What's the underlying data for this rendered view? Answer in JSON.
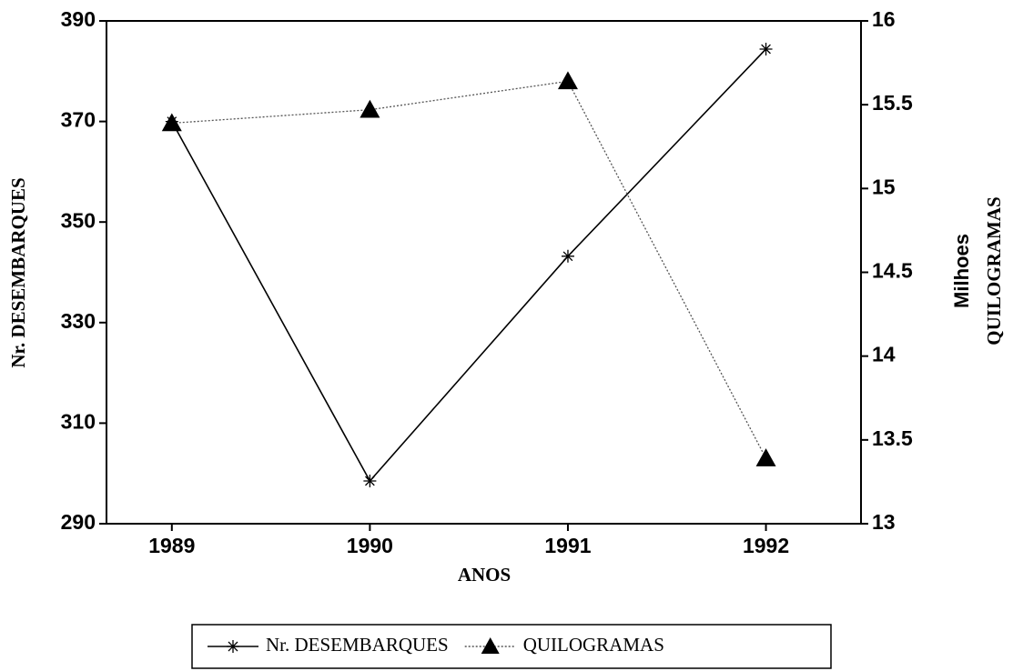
{
  "chart_data": {
    "type": "line",
    "x": [
      1989,
      1990,
      1991,
      1992
    ],
    "xlim": [
      1988.67,
      1992.48
    ],
    "xticks": [
      1989,
      1990,
      1991,
      1992
    ],
    "ylim": [
      290,
      390
    ],
    "yticks": [
      290,
      310,
      330,
      350,
      370,
      390
    ],
    "y2lim": [
      13,
      16
    ],
    "y2ticks": [
      13,
      13.5,
      14,
      14.5,
      15,
      15.5,
      16
    ],
    "x_label": "ANOS",
    "y_label": "Nr. DESEMBARQUES",
    "y2_label": "QUILOGRAMAS",
    "y2_unit_label": "Milhoes",
    "legend": "bottom",
    "series": [
      {
        "name": "Nr. DESEMBARQUES",
        "color": "#000000",
        "marker": "asterisk",
        "line_style": "solid",
        "values": [
          370,
          298.5,
          343.2,
          384.4
        ]
      },
      {
        "name": "QUILOGRAMAS",
        "color": "#555555",
        "marker": "triangle",
        "line_style": "dotted",
        "axis": "y2",
        "values": [
          15.39,
          15.47,
          15.64,
          13.39
        ]
      }
    ]
  }
}
